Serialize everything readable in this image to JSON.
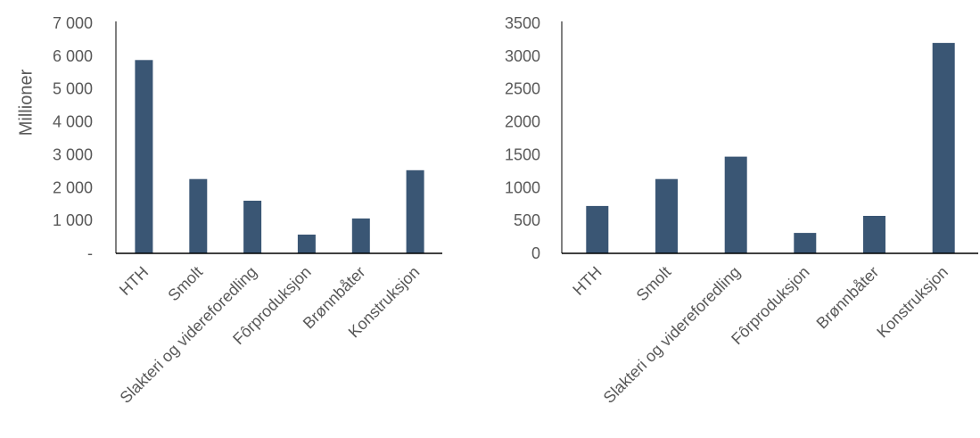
{
  "colors": {
    "bar": "#3a5674",
    "axis": "#000000",
    "text": "#595959"
  },
  "chart_data": [
    {
      "type": "bar",
      "title": "",
      "xlabel": "",
      "ylabel": "Millioner",
      "ylim": [
        0,
        7000
      ],
      "yticks": [
        0,
        1000,
        2000,
        3000,
        4000,
        5000,
        6000,
        7000
      ],
      "ytick_labels": [
        "-",
        "1 000",
        "2 000",
        "3 000",
        "4 000",
        "5 000",
        "6 000",
        "7 000"
      ],
      "grid": false,
      "legend": "none",
      "categories": [
        "HTH",
        "Smolt",
        "Slakteri og videreforedling",
        "Fôrproduksjon",
        "Brønnbåter",
        "Konstruksjon"
      ],
      "values": [
        5880,
        2260,
        1600,
        570,
        1060,
        2530
      ]
    },
    {
      "type": "bar",
      "title": "",
      "xlabel": "",
      "ylabel": "",
      "ylim": [
        0,
        3500
      ],
      "yticks": [
        0,
        500,
        1000,
        1500,
        2000,
        2500,
        3000,
        3500
      ],
      "ytick_labels": [
        "0",
        "500",
        "1000",
        "1500",
        "2000",
        "2500",
        "3000",
        "3500"
      ],
      "grid": false,
      "legend": "none",
      "categories": [
        "HTH",
        "Smolt",
        "Slakteri og videreforedling",
        "Fôrproduksjon",
        "Brønnbåter",
        "Konstruksjon"
      ],
      "values": [
        720,
        1130,
        1470,
        310,
        570,
        3200
      ]
    }
  ]
}
